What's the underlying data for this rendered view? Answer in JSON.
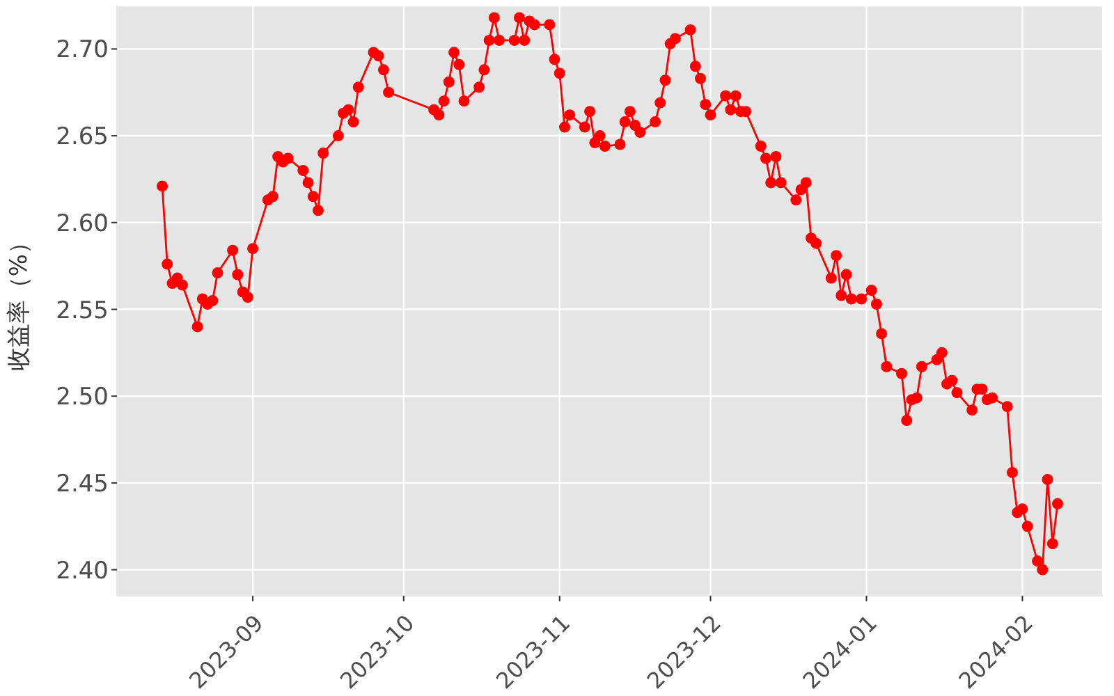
{
  "chart_data": {
    "type": "line",
    "ylabel": "收益率（%）",
    "x": [
      "2023-08-14",
      "2023-08-15",
      "2023-08-16",
      "2023-08-17",
      "2023-08-18",
      "2023-08-21",
      "2023-08-22",
      "2023-08-23",
      "2023-08-24",
      "2023-08-25",
      "2023-08-28",
      "2023-08-29",
      "2023-08-30",
      "2023-08-31",
      "2023-09-01",
      "2023-09-04",
      "2023-09-05",
      "2023-09-06",
      "2023-09-07",
      "2023-09-08",
      "2023-09-11",
      "2023-09-12",
      "2023-09-13",
      "2023-09-14",
      "2023-09-15",
      "2023-09-18",
      "2023-09-19",
      "2023-09-20",
      "2023-09-21",
      "2023-09-22",
      "2023-09-25",
      "2023-09-26",
      "2023-09-27",
      "2023-09-28",
      "2023-10-07",
      "2023-10-08",
      "2023-10-09",
      "2023-10-10",
      "2023-10-11",
      "2023-10-12",
      "2023-10-13",
      "2023-10-16",
      "2023-10-17",
      "2023-10-18",
      "2023-10-19",
      "2023-10-20",
      "2023-10-23",
      "2023-10-24",
      "2023-10-25",
      "2023-10-26",
      "2023-10-27",
      "2023-10-30",
      "2023-10-31",
      "2023-11-01",
      "2023-11-02",
      "2023-11-03",
      "2023-11-06",
      "2023-11-07",
      "2023-11-08",
      "2023-11-09",
      "2023-11-10",
      "2023-11-13",
      "2023-11-14",
      "2023-11-15",
      "2023-11-16",
      "2023-11-17",
      "2023-11-20",
      "2023-11-21",
      "2023-11-22",
      "2023-11-23",
      "2023-11-24",
      "2023-11-27",
      "2023-11-28",
      "2023-11-29",
      "2023-11-30",
      "2023-12-01",
      "2023-12-04",
      "2023-12-05",
      "2023-12-06",
      "2023-12-07",
      "2023-12-08",
      "2023-12-11",
      "2023-12-12",
      "2023-12-13",
      "2023-12-14",
      "2023-12-15",
      "2023-12-18",
      "2023-12-19",
      "2023-12-20",
      "2023-12-21",
      "2023-12-22",
      "2023-12-25",
      "2023-12-26",
      "2023-12-27",
      "2023-12-28",
      "2023-12-29",
      "2023-12-31",
      "2024-01-02",
      "2024-01-03",
      "2024-01-04",
      "2024-01-05",
      "2024-01-08",
      "2024-01-09",
      "2024-01-10",
      "2024-01-11",
      "2024-01-12",
      "2024-01-15",
      "2024-01-16",
      "2024-01-17",
      "2024-01-18",
      "2024-01-19",
      "2024-01-22",
      "2024-01-23",
      "2024-01-24",
      "2024-01-25",
      "2024-01-26",
      "2024-01-29",
      "2024-01-30",
      "2024-01-31",
      "2024-02-01",
      "2024-02-02",
      "2024-02-04",
      "2024-02-05",
      "2024-02-06",
      "2024-02-07",
      "2024-02-08"
    ],
    "values": [
      2.621,
      2.576,
      2.565,
      2.568,
      2.564,
      2.54,
      2.556,
      2.553,
      2.555,
      2.571,
      2.584,
      2.57,
      2.56,
      2.557,
      2.585,
      2.613,
      2.615,
      2.638,
      2.635,
      2.637,
      2.63,
      2.623,
      2.615,
      2.607,
      2.64,
      2.65,
      2.663,
      2.665,
      2.658,
      2.678,
      2.698,
      2.696,
      2.688,
      2.675,
      2.665,
      2.662,
      2.67,
      2.681,
      2.698,
      2.691,
      2.67,
      2.678,
      2.688,
      2.705,
      2.718,
      2.705,
      2.705,
      2.718,
      2.705,
      2.716,
      2.714,
      2.714,
      2.694,
      2.686,
      2.655,
      2.662,
      2.655,
      2.664,
      2.646,
      2.65,
      2.644,
      2.645,
      2.658,
      2.664,
      2.656,
      2.652,
      2.658,
      2.669,
      2.682,
      2.703,
      2.706,
      2.711,
      2.69,
      2.683,
      2.668,
      2.662,
      2.673,
      2.665,
      2.673,
      2.664,
      2.664,
      2.644,
      2.637,
      2.623,
      2.638,
      2.623,
      2.613,
      2.619,
      2.623,
      2.591,
      2.588,
      2.568,
      2.581,
      2.558,
      2.57,
      2.556,
      2.556,
      2.561,
      2.553,
      2.536,
      2.517,
      2.513,
      2.486,
      2.498,
      2.499,
      2.517,
      2.521,
      2.525,
      2.507,
      2.509,
      2.502,
      2.492,
      2.504,
      2.504,
      2.498,
      2.499,
      2.494,
      2.456,
      2.433,
      2.435,
      2.425,
      2.405,
      2.4,
      2.452,
      2.415,
      2.438
    ],
    "color": "#ff0000",
    "marker": "circle",
    "line_style": "solid",
    "grid": true,
    "xlim": [
      "2023-08-05",
      "2024-02-17"
    ],
    "xticks": [
      "2023-09",
      "2023-10",
      "2023-11",
      "2023-12",
      "2024-01",
      "2024-02"
    ],
    "ylim": [
      2.385,
      2.725
    ],
    "yticks": [
      {
        "value": 2.4,
        "label": "2.40"
      },
      {
        "value": 2.45,
        "label": "2.45"
      },
      {
        "value": 2.5,
        "label": "2.50"
      },
      {
        "value": 2.55,
        "label": "2.55"
      },
      {
        "value": 2.6,
        "label": "2.60"
      },
      {
        "value": 2.65,
        "label": "2.65"
      },
      {
        "value": 2.7,
        "label": "2.70"
      }
    ]
  }
}
